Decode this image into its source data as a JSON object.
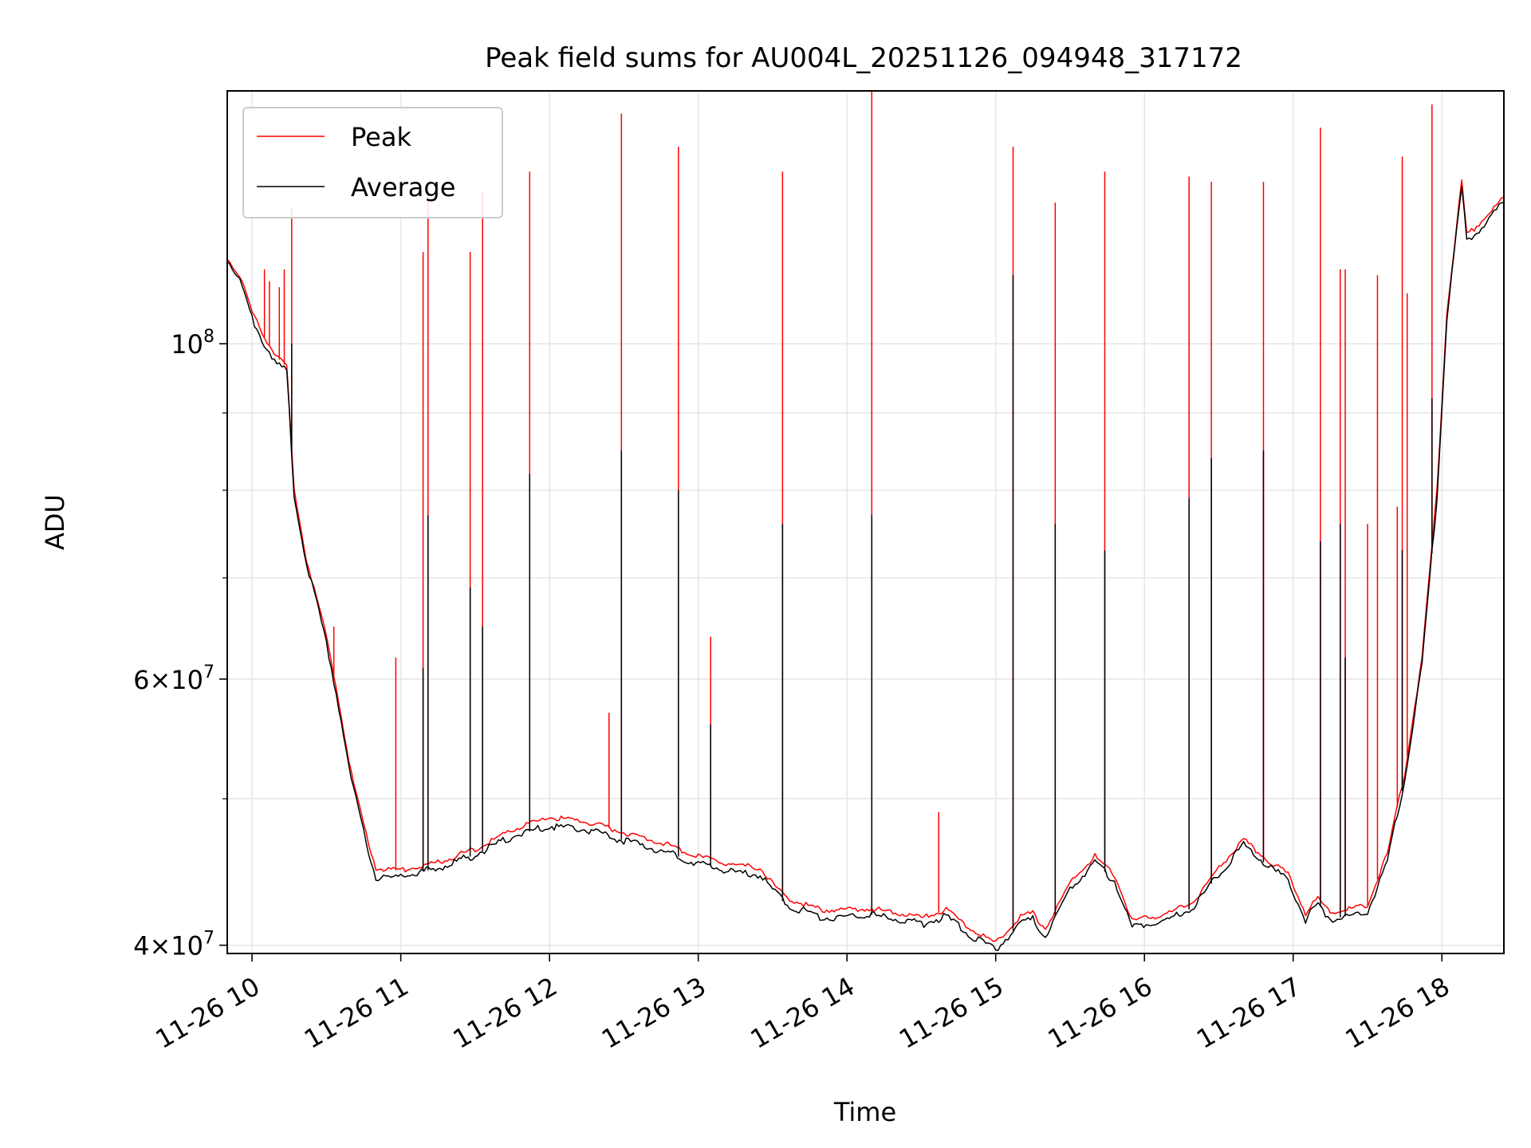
{
  "chart_data": {
    "type": "line",
    "title": "Peak field sums for AU004L_20251126_094948_317172",
    "xlabel": "Time",
    "ylabel": "ADU",
    "y_scale": "log",
    "ylim": [
      39500000,
      147000000
    ],
    "xlim": [
      "2025-11-26 09:50",
      "2025-11-26 18:25"
    ],
    "x_ticks": [
      {
        "value": "2025-11-26 10:00",
        "label": "11-26 10"
      },
      {
        "value": "2025-11-26 11:00",
        "label": "11-26 11"
      },
      {
        "value": "2025-11-26 12:00",
        "label": "11-26 12"
      },
      {
        "value": "2025-11-26 13:00",
        "label": "11-26 13"
      },
      {
        "value": "2025-11-26 14:00",
        "label": "11-26 14"
      },
      {
        "value": "2025-11-26 15:00",
        "label": "11-26 15"
      },
      {
        "value": "2025-11-26 16:00",
        "label": "11-26 16"
      },
      {
        "value": "2025-11-26 17:00",
        "label": "11-26 17"
      },
      {
        "value": "2025-11-26 18:00",
        "label": "11-26 18"
      }
    ],
    "y_major_ticks": [
      {
        "value": 40000000,
        "base": "4×10",
        "exp": "7"
      },
      {
        "value": 60000000,
        "base": "6×10",
        "exp": "7"
      },
      {
        "value": 100000000,
        "base": "10",
        "exp": "8"
      }
    ],
    "y_minor_ticks": [
      50000000,
      70000000,
      80000000,
      90000000
    ],
    "grid": true,
    "legend": "upper-left",
    "colors": {
      "peak": "#ff0000",
      "average": "#000000",
      "grid": "#e6e6e6"
    },
    "series": [
      {
        "name": "Peak",
        "color": "#ff0000",
        "baseline": [
          [
            "2025-11-26 09:50",
            114000000
          ],
          [
            "2025-11-26 09:55",
            111000000
          ],
          [
            "2025-11-26 10:00",
            105000000
          ],
          [
            "2025-11-26 10:05",
            101000000
          ],
          [
            "2025-11-26 10:10",
            98000000
          ],
          [
            "2025-11-26 10:14",
            96500000
          ],
          [
            "2025-11-26 10:17",
            80000000
          ],
          [
            "2025-11-26 10:22",
            72000000
          ],
          [
            "2025-11-26 10:30",
            64000000
          ],
          [
            "2025-11-26 10:35",
            58000000
          ],
          [
            "2025-11-26 10:40",
            52000000
          ],
          [
            "2025-11-26 10:45",
            48000000
          ],
          [
            "2025-11-26 10:50",
            45000000
          ],
          [
            "2025-11-26 11:00",
            44800000
          ],
          [
            "2025-11-26 11:15",
            45400000
          ],
          [
            "2025-11-26 11:30",
            46300000
          ],
          [
            "2025-11-26 11:45",
            47700000
          ],
          [
            "2025-11-26 12:00",
            48600000
          ],
          [
            "2025-11-26 12:15",
            48300000
          ],
          [
            "2025-11-26 12:30",
            47500000
          ],
          [
            "2025-11-26 12:45",
            46800000
          ],
          [
            "2025-11-26 13:00",
            45800000
          ],
          [
            "2025-11-26 13:15",
            45200000
          ],
          [
            "2025-11-26 13:25",
            45000000
          ],
          [
            "2025-11-26 13:35",
            43000000
          ],
          [
            "2025-11-26 13:50",
            42200000
          ],
          [
            "2025-11-26 14:10",
            42300000
          ],
          [
            "2025-11-26 14:30",
            41700000
          ],
          [
            "2025-11-26 14:40",
            42200000
          ],
          [
            "2025-11-26 14:50",
            41000000
          ],
          [
            "2025-11-26 15:00",
            40100000
          ],
          [
            "2025-11-26 15:10",
            41800000
          ],
          [
            "2025-11-26 15:15",
            42000000
          ],
          [
            "2025-11-26 15:20",
            41000000
          ],
          [
            "2025-11-26 15:30",
            44000000
          ],
          [
            "2025-11-26 15:40",
            45800000
          ],
          [
            "2025-11-26 15:48",
            44500000
          ],
          [
            "2025-11-26 15:55",
            41500000
          ],
          [
            "2025-11-26 16:10",
            42000000
          ],
          [
            "2025-11-26 16:20",
            42800000
          ],
          [
            "2025-11-26 16:30",
            45000000
          ],
          [
            "2025-11-26 16:40",
            47000000
          ],
          [
            "2025-11-26 16:50",
            45500000
          ],
          [
            "2025-11-26 16:58",
            44600000
          ],
          [
            "2025-11-26 17:05",
            42000000
          ],
          [
            "2025-11-26 17:10",
            43000000
          ],
          [
            "2025-11-26 17:15",
            42000000
          ],
          [
            "2025-11-26 17:30",
            42500000
          ],
          [
            "2025-11-26 17:38",
            46000000
          ],
          [
            "2025-11-26 17:45",
            52000000
          ],
          [
            "2025-11-26 17:52",
            62000000
          ],
          [
            "2025-11-26 17:58",
            80000000
          ],
          [
            "2025-11-26 18:02",
            105000000
          ],
          [
            "2025-11-26 18:05",
            116000000
          ],
          [
            "2025-11-26 18:08",
            128000000
          ],
          [
            "2025-11-26 18:10",
            118000000
          ],
          [
            "2025-11-26 18:15",
            120000000
          ],
          [
            "2025-11-26 18:25",
            125000000
          ]
        ],
        "spikes": [
          [
            "2025-11-26 10:05",
            112000000
          ],
          [
            "2025-11-26 10:07",
            110000000
          ],
          [
            "2025-11-26 10:11",
            109000000
          ],
          [
            "2025-11-26 10:13",
            112000000
          ],
          [
            "2025-11-26 10:16",
            123000000
          ],
          [
            "2025-11-26 10:33",
            65000000
          ],
          [
            "2025-11-26 10:58",
            62000000
          ],
          [
            "2025-11-26 11:09",
            115000000
          ],
          [
            "2025-11-26 11:11",
            127000000
          ],
          [
            "2025-11-26 11:28",
            115000000
          ],
          [
            "2025-11-26 11:33",
            126000000
          ],
          [
            "2025-11-26 11:52",
            130000000
          ],
          [
            "2025-11-26 12:24",
            57000000
          ],
          [
            "2025-11-26 12:29",
            142000000
          ],
          [
            "2025-11-26 12:52",
            135000000
          ],
          [
            "2025-11-26 13:05",
            64000000
          ],
          [
            "2025-11-26 13:34",
            130000000
          ],
          [
            "2025-11-26 14:10",
            147000000
          ],
          [
            "2025-11-26 14:37",
            49000000
          ],
          [
            "2025-11-26 15:07",
            135000000
          ],
          [
            "2025-11-26 15:24",
            124000000
          ],
          [
            "2025-11-26 15:44",
            130000000
          ],
          [
            "2025-11-26 16:18",
            129000000
          ],
          [
            "2025-11-26 16:27",
            128000000
          ],
          [
            "2025-11-26 16:48",
            128000000
          ],
          [
            "2025-11-26 17:11",
            139000000
          ],
          [
            "2025-11-26 17:19",
            112000000
          ],
          [
            "2025-11-26 17:21",
            112000000
          ],
          [
            "2025-11-26 17:30",
            76000000
          ],
          [
            "2025-11-26 17:34",
            111000000
          ],
          [
            "2025-11-26 17:42",
            78000000
          ],
          [
            "2025-11-26 17:44",
            133000000
          ],
          [
            "2025-11-26 17:46",
            108000000
          ],
          [
            "2025-11-26 17:56",
            144000000
          ]
        ]
      },
      {
        "name": "Average",
        "color": "#000000",
        "baseline": [
          [
            "2025-11-26 09:50",
            114000000
          ],
          [
            "2025-11-26 09:55",
            110000000
          ],
          [
            "2025-11-26 10:00",
            104000000
          ],
          [
            "2025-11-26 10:05",
            100000000
          ],
          [
            "2025-11-26 10:10",
            97000000
          ],
          [
            "2025-11-26 10:14",
            96000000
          ],
          [
            "2025-11-26 10:17",
            79500000
          ],
          [
            "2025-11-26 10:22",
            71500000
          ],
          [
            "2025-11-26 10:30",
            63500000
          ],
          [
            "2025-11-26 10:35",
            57500000
          ],
          [
            "2025-11-26 10:40",
            51500000
          ],
          [
            "2025-11-26 10:45",
            47500000
          ],
          [
            "2025-11-26 10:50",
            44300000
          ],
          [
            "2025-11-26 11:00",
            44400000
          ],
          [
            "2025-11-26 11:15",
            45000000
          ],
          [
            "2025-11-26 11:30",
            45900000
          ],
          [
            "2025-11-26 11:45",
            47200000
          ],
          [
            "2025-11-26 12:00",
            48000000
          ],
          [
            "2025-11-26 12:15",
            47700000
          ],
          [
            "2025-11-26 12:30",
            46900000
          ],
          [
            "2025-11-26 12:45",
            46200000
          ],
          [
            "2025-11-26 13:00",
            45300000
          ],
          [
            "2025-11-26 13:15",
            44700000
          ],
          [
            "2025-11-26 13:25",
            44500000
          ],
          [
            "2025-11-26 13:35",
            42600000
          ],
          [
            "2025-11-26 13:50",
            41700000
          ],
          [
            "2025-11-26 14:10",
            41900000
          ],
          [
            "2025-11-26 14:30",
            41300000
          ],
          [
            "2025-11-26 14:40",
            41800000
          ],
          [
            "2025-11-26 14:50",
            40600000
          ],
          [
            "2025-11-26 15:00",
            39700000
          ],
          [
            "2025-11-26 15:10",
            41400000
          ],
          [
            "2025-11-26 15:15",
            41600000
          ],
          [
            "2025-11-26 15:20",
            40600000
          ],
          [
            "2025-11-26 15:30",
            43600000
          ],
          [
            "2025-11-26 15:40",
            45400000
          ],
          [
            "2025-11-26 15:48",
            44100000
          ],
          [
            "2025-11-26 15:55",
            41100000
          ],
          [
            "2025-11-26 16:10",
            41600000
          ],
          [
            "2025-11-26 16:20",
            42400000
          ],
          [
            "2025-11-26 16:30",
            44600000
          ],
          [
            "2025-11-26 16:40",
            46600000
          ],
          [
            "2025-11-26 16:50",
            45100000
          ],
          [
            "2025-11-26 16:58",
            44200000
          ],
          [
            "2025-11-26 17:05",
            41600000
          ],
          [
            "2025-11-26 17:10",
            42600000
          ],
          [
            "2025-11-26 17:15",
            41600000
          ],
          [
            "2025-11-26 17:30",
            42100000
          ],
          [
            "2025-11-26 17:38",
            45500000
          ],
          [
            "2025-11-26 17:45",
            51500000
          ],
          [
            "2025-11-26 17:52",
            61500000
          ],
          [
            "2025-11-26 17:58",
            79000000
          ],
          [
            "2025-11-26 18:02",
            104000000
          ],
          [
            "2025-11-26 18:05",
            115000000
          ],
          [
            "2025-11-26 18:08",
            127000000
          ],
          [
            "2025-11-26 18:10",
            117000000
          ],
          [
            "2025-11-26 18:15",
            119000000
          ],
          [
            "2025-11-26 18:25",
            124000000
          ]
        ],
        "spikes": [
          [
            "2025-11-26 10:16",
            100000000
          ],
          [
            "2025-11-26 11:09",
            61000000
          ],
          [
            "2025-11-26 11:11",
            77000000
          ],
          [
            "2025-11-26 11:28",
            69000000
          ],
          [
            "2025-11-26 11:33",
            65000000
          ],
          [
            "2025-11-26 11:52",
            82000000
          ],
          [
            "2025-11-26 12:29",
            85000000
          ],
          [
            "2025-11-26 12:52",
            80000000
          ],
          [
            "2025-11-26 13:05",
            56000000
          ],
          [
            "2025-11-26 13:34",
            76000000
          ],
          [
            "2025-11-26 14:10",
            77000000
          ],
          [
            "2025-11-26 15:07",
            111000000
          ],
          [
            "2025-11-26 15:24",
            76000000
          ],
          [
            "2025-11-26 15:44",
            73000000
          ],
          [
            "2025-11-26 16:18",
            79000000
          ],
          [
            "2025-11-26 16:27",
            84000000
          ],
          [
            "2025-11-26 16:48",
            85000000
          ],
          [
            "2025-11-26 17:11",
            74000000
          ],
          [
            "2025-11-26 17:19",
            76000000
          ],
          [
            "2025-11-26 17:21",
            62000000
          ],
          [
            "2025-11-26 17:44",
            73000000
          ],
          [
            "2025-11-26 17:56",
            92000000
          ]
        ]
      }
    ]
  }
}
